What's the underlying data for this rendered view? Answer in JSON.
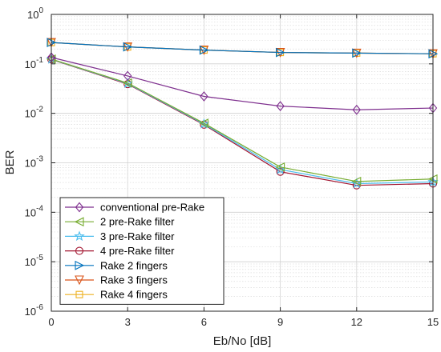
{
  "chart_data": {
    "type": "line",
    "xlabel": "Eb/No [dB]",
    "ylabel": "BER",
    "yscale": "log",
    "xlim": [
      0,
      15
    ],
    "ylim": [
      1e-06,
      1
    ],
    "grid": true,
    "legend_position": "bottom-left",
    "x": [
      0,
      3,
      6,
      9,
      12,
      15
    ],
    "x_tick_labels": [
      "0",
      "3",
      "6",
      "9",
      "12",
      "15"
    ],
    "y_tick_labels": [
      {
        "base": "10",
        "exp": "-6"
      },
      {
        "base": "10",
        "exp": "-5"
      },
      {
        "base": "10",
        "exp": "-4"
      },
      {
        "base": "10",
        "exp": "-3"
      },
      {
        "base": "10",
        "exp": "-2"
      },
      {
        "base": "10",
        "exp": "-1"
      },
      {
        "base": "10",
        "exp": "0"
      }
    ],
    "series": [
      {
        "name": "conventional pre-Rake",
        "color": "#7e2f8e",
        "marker": "diamond",
        "values": [
          0.135,
          0.057,
          0.022,
          0.014,
          0.0118,
          0.0128
        ]
      },
      {
        "name": "2 pre-Rake filter",
        "color": "#77ac30",
        "marker": "triangle-left",
        "values": [
          0.125,
          0.041,
          0.0063,
          0.00082,
          0.00042,
          0.00047
        ]
      },
      {
        "name": "3 pre-Rake filter",
        "color": "#4dbeee",
        "marker": "pentagram",
        "values": [
          0.124,
          0.04,
          0.0061,
          0.00073,
          0.00038,
          0.00041
        ]
      },
      {
        "name": "4 pre-Rake filter",
        "color": "#a2142f",
        "marker": "circle",
        "values": [
          0.123,
          0.039,
          0.0059,
          0.00066,
          0.00035,
          0.00038
        ]
      },
      {
        "name": "Rake 2 fingers",
        "color": "#0072bd",
        "marker": "triangle-right",
        "values": [
          0.27,
          0.22,
          0.19,
          0.17,
          0.165,
          0.16
        ]
      },
      {
        "name": "Rake 3 fingers",
        "color": "#d95319",
        "marker": "triangle-down",
        "values": [
          0.27,
          0.22,
          0.19,
          0.17,
          0.165,
          0.16
        ]
      },
      {
        "name": "Rake 4 fingers",
        "color": "#edb120",
        "marker": "square",
        "values": [
          0.27,
          0.22,
          0.19,
          0.17,
          0.165,
          0.16
        ]
      }
    ]
  }
}
